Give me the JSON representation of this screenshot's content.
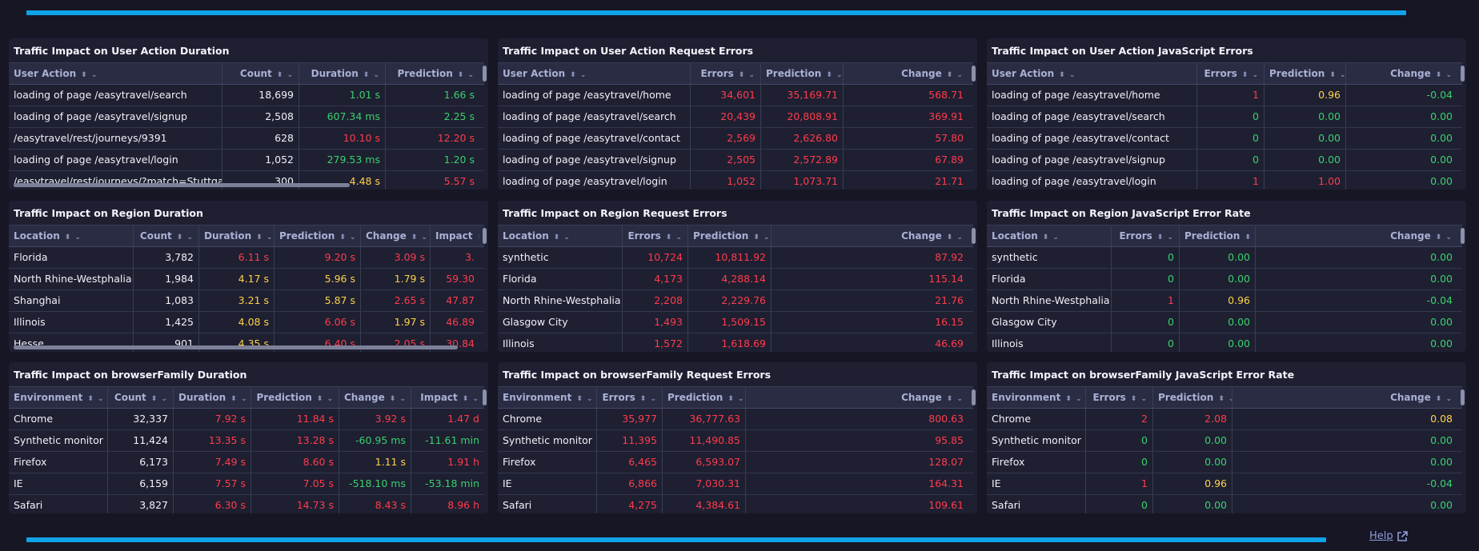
{
  "help_label": "Help",
  "colors": {
    "accent": "#0fa3e8",
    "red": "#ff3c4c",
    "green": "#39d16e",
    "yellow": "#ffd24a"
  },
  "panels": [
    {
      "title": "Traffic Impact on User Action Duration",
      "hscroll": true,
      "columns": [
        {
          "label": "User Action",
          "align": "left"
        },
        {
          "label": "Count",
          "align": "right"
        },
        {
          "label": "Duration",
          "align": "right"
        },
        {
          "label": "Prediction",
          "align": "right"
        }
      ],
      "rows": [
        {
          "cells": [
            "loading of page /easytravel/search",
            "18,699",
            "1.01 s",
            "1.66 s"
          ],
          "colors": [
            "white",
            "white",
            "green",
            "green"
          ]
        },
        {
          "cells": [
            "loading of page /easytravel/signup",
            "2,508",
            "607.34 ms",
            "2.25 s"
          ],
          "colors": [
            "white",
            "white",
            "green",
            "green"
          ]
        },
        {
          "cells": [
            "/easytravel/rest/journeys/9391",
            "628",
            "10.10 s",
            "12.20 s"
          ],
          "colors": [
            "white",
            "white",
            "red",
            "red"
          ]
        },
        {
          "cells": [
            "loading of page /easytravel/login",
            "1,052",
            "279.53 ms",
            "1.20 s"
          ],
          "colors": [
            "white",
            "white",
            "green",
            "green"
          ]
        },
        {
          "cells": [
            "/easytravel/rest/journeys/?match=Stuttgart",
            "300",
            "4.48 s",
            "5.57 s"
          ],
          "colors": [
            "white",
            "white",
            "yellow",
            "red"
          ]
        }
      ]
    },
    {
      "title": "Traffic Impact on User Action Request Errors",
      "hscroll": false,
      "columns": [
        {
          "label": "User Action",
          "align": "left"
        },
        {
          "label": "Errors",
          "align": "right"
        },
        {
          "label": "Prediction",
          "align": "right"
        },
        {
          "label": "Change",
          "align": "right"
        }
      ],
      "rows": [
        {
          "cells": [
            "loading of page /easytravel/home",
            "34,601",
            "35,169.71",
            "568.71"
          ],
          "colors": [
            "white",
            "red",
            "red",
            "red"
          ]
        },
        {
          "cells": [
            "loading of page /easytravel/search",
            "20,439",
            "20,808.91",
            "369.91"
          ],
          "colors": [
            "white",
            "red",
            "red",
            "red"
          ]
        },
        {
          "cells": [
            "loading of page /easytravel/contact",
            "2,569",
            "2,626.80",
            "57.80"
          ],
          "colors": [
            "white",
            "red",
            "red",
            "red"
          ]
        },
        {
          "cells": [
            "loading of page /easytravel/signup",
            "2,505",
            "2,572.89",
            "67.89"
          ],
          "colors": [
            "white",
            "red",
            "red",
            "red"
          ]
        },
        {
          "cells": [
            "loading of page /easytravel/login",
            "1,052",
            "1,073.71",
            "21.71"
          ],
          "colors": [
            "white",
            "red",
            "red",
            "red"
          ]
        }
      ]
    },
    {
      "title": "Traffic Impact on User Action JavaScript Errors",
      "hscroll": false,
      "columns": [
        {
          "label": "User Action",
          "align": "left"
        },
        {
          "label": "Errors",
          "align": "right"
        },
        {
          "label": "Prediction",
          "align": "right"
        },
        {
          "label": "Change",
          "align": "right"
        }
      ],
      "rows": [
        {
          "cells": [
            "loading of page /easytravel/home",
            "1",
            "0.96",
            "-0.04"
          ],
          "colors": [
            "white",
            "red",
            "yellow",
            "green"
          ]
        },
        {
          "cells": [
            "loading of page /easytravel/search",
            "0",
            "0.00",
            "0.00"
          ],
          "colors": [
            "white",
            "green",
            "green",
            "green"
          ]
        },
        {
          "cells": [
            "loading of page /easytravel/contact",
            "0",
            "0.00",
            "0.00"
          ],
          "colors": [
            "white",
            "green",
            "green",
            "green"
          ]
        },
        {
          "cells": [
            "loading of page /easytravel/signup",
            "0",
            "0.00",
            "0.00"
          ],
          "colors": [
            "white",
            "green",
            "green",
            "green"
          ]
        },
        {
          "cells": [
            "loading of page /easytravel/login",
            "1",
            "1.00",
            "0.00"
          ],
          "colors": [
            "white",
            "red",
            "red",
            "green"
          ]
        }
      ]
    },
    {
      "title": "Traffic Impact on Region Duration",
      "hscroll": true,
      "columns": [
        {
          "label": "Location",
          "align": "left"
        },
        {
          "label": "Count",
          "align": "right"
        },
        {
          "label": "Duration",
          "align": "right"
        },
        {
          "label": "Prediction",
          "align": "right"
        },
        {
          "label": "Change",
          "align": "right"
        },
        {
          "label": "Impact",
          "align": "right"
        }
      ],
      "rows": [
        {
          "cells": [
            "Florida",
            "3,782",
            "6.11 s",
            "9.20 s",
            "3.09 s",
            "3."
          ],
          "colors": [
            "white",
            "white",
            "red",
            "red",
            "red",
            "red"
          ]
        },
        {
          "cells": [
            "North Rhine-Westphalia",
            "1,984",
            "4.17 s",
            "5.96 s",
            "1.79 s",
            "59.30"
          ],
          "colors": [
            "white",
            "white",
            "yellow",
            "yellow",
            "yellow",
            "red"
          ]
        },
        {
          "cells": [
            "Shanghai",
            "1,083",
            "3.21 s",
            "5.87 s",
            "2.65 s",
            "47.87"
          ],
          "colors": [
            "white",
            "white",
            "yellow",
            "yellow",
            "red",
            "red"
          ]
        },
        {
          "cells": [
            "Illinois",
            "1,425",
            "4.08 s",
            "6.06 s",
            "1.97 s",
            "46.89"
          ],
          "colors": [
            "white",
            "white",
            "yellow",
            "red",
            "yellow",
            "red"
          ]
        },
        {
          "cells": [
            "Hesse",
            "901",
            "4.35 s",
            "6.40 s",
            "2.05 s",
            "30.84"
          ],
          "colors": [
            "white",
            "white",
            "yellow",
            "red",
            "red",
            "red"
          ]
        }
      ]
    },
    {
      "title": "Traffic Impact on Region Request Errors",
      "hscroll": false,
      "columns": [
        {
          "label": "Location",
          "align": "left"
        },
        {
          "label": "Errors",
          "align": "right"
        },
        {
          "label": "Prediction",
          "align": "right"
        },
        {
          "label": "Change",
          "align": "right"
        }
      ],
      "rows": [
        {
          "cells": [
            "synthetic",
            "10,724",
            "10,811.92",
            "87.92"
          ],
          "colors": [
            "white",
            "red",
            "red",
            "red"
          ]
        },
        {
          "cells": [
            "Florida",
            "4,173",
            "4,288.14",
            "115.14"
          ],
          "colors": [
            "white",
            "red",
            "red",
            "red"
          ]
        },
        {
          "cells": [
            "North Rhine-Westphalia",
            "2,208",
            "2,229.76",
            "21.76"
          ],
          "colors": [
            "white",
            "red",
            "red",
            "red"
          ]
        },
        {
          "cells": [
            "Glasgow City",
            "1,493",
            "1,509.15",
            "16.15"
          ],
          "colors": [
            "white",
            "red",
            "red",
            "red"
          ]
        },
        {
          "cells": [
            "Illinois",
            "1,572",
            "1,618.69",
            "46.69"
          ],
          "colors": [
            "white",
            "red",
            "red",
            "red"
          ]
        }
      ]
    },
    {
      "title": "Traffic Impact on Region JavaScript Error Rate",
      "hscroll": false,
      "columns": [
        {
          "label": "Location",
          "align": "left"
        },
        {
          "label": "Errors",
          "align": "right"
        },
        {
          "label": "Prediction",
          "align": "right"
        },
        {
          "label": "Change",
          "align": "right"
        }
      ],
      "rows": [
        {
          "cells": [
            "synthetic",
            "0",
            "0.00",
            "0.00"
          ],
          "colors": [
            "white",
            "green",
            "green",
            "green"
          ]
        },
        {
          "cells": [
            "Florida",
            "0",
            "0.00",
            "0.00"
          ],
          "colors": [
            "white",
            "green",
            "green",
            "green"
          ]
        },
        {
          "cells": [
            "North Rhine-Westphalia",
            "1",
            "0.96",
            "-0.04"
          ],
          "colors": [
            "white",
            "red",
            "yellow",
            "green"
          ]
        },
        {
          "cells": [
            "Glasgow City",
            "0",
            "0.00",
            "0.00"
          ],
          "colors": [
            "white",
            "green",
            "green",
            "green"
          ]
        },
        {
          "cells": [
            "Illinois",
            "0",
            "0.00",
            "0.00"
          ],
          "colors": [
            "white",
            "green",
            "green",
            "green"
          ]
        }
      ]
    },
    {
      "title": "Traffic Impact on browserFamily Duration",
      "hscroll": false,
      "columns": [
        {
          "label": "Environment",
          "align": "left"
        },
        {
          "label": "Count",
          "align": "right"
        },
        {
          "label": "Duration",
          "align": "right"
        },
        {
          "label": "Prediction",
          "align": "right"
        },
        {
          "label": "Change",
          "align": "right"
        },
        {
          "label": "Impact",
          "align": "right"
        }
      ],
      "rows": [
        {
          "cells": [
            "Chrome",
            "32,337",
            "7.92 s",
            "11.84 s",
            "3.92 s",
            "1.47 d"
          ],
          "colors": [
            "white",
            "white",
            "red",
            "red",
            "red",
            "red"
          ]
        },
        {
          "cells": [
            "Synthetic monitor",
            "11,424",
            "13.35 s",
            "13.28 s",
            "-60.95 ms",
            "-11.61 min"
          ],
          "colors": [
            "white",
            "white",
            "red",
            "red",
            "green",
            "green"
          ]
        },
        {
          "cells": [
            "Firefox",
            "6,173",
            "7.49 s",
            "8.60 s",
            "1.11 s",
            "1.91 h"
          ],
          "colors": [
            "white",
            "white",
            "red",
            "red",
            "yellow",
            "red"
          ]
        },
        {
          "cells": [
            "IE",
            "6,159",
            "7.57 s",
            "7.05 s",
            "-518.10 ms",
            "-53.18 min"
          ],
          "colors": [
            "white",
            "white",
            "red",
            "red",
            "green",
            "green"
          ]
        },
        {
          "cells": [
            "Safari",
            "3,827",
            "6.30 s",
            "14.73 s",
            "8.43 s",
            "8.96 h"
          ],
          "colors": [
            "white",
            "white",
            "red",
            "red",
            "red",
            "red"
          ]
        }
      ]
    },
    {
      "title": "Traffic Impact on browserFamily Request Errors",
      "hscroll": false,
      "columns": [
        {
          "label": "Environment",
          "align": "left"
        },
        {
          "label": "Errors",
          "align": "right"
        },
        {
          "label": "Prediction",
          "align": "right"
        },
        {
          "label": "Change",
          "align": "right"
        }
      ],
      "rows": [
        {
          "cells": [
            "Chrome",
            "35,977",
            "36,777.63",
            "800.63"
          ],
          "colors": [
            "white",
            "red",
            "red",
            "red"
          ]
        },
        {
          "cells": [
            "Synthetic monitor",
            "11,395",
            "11,490.85",
            "95.85"
          ],
          "colors": [
            "white",
            "red",
            "red",
            "red"
          ]
        },
        {
          "cells": [
            "Firefox",
            "6,465",
            "6,593.07",
            "128.07"
          ],
          "colors": [
            "white",
            "red",
            "red",
            "red"
          ]
        },
        {
          "cells": [
            "IE",
            "6,866",
            "7,030.31",
            "164.31"
          ],
          "colors": [
            "white",
            "red",
            "red",
            "red"
          ]
        },
        {
          "cells": [
            "Safari",
            "4,275",
            "4,384.61",
            "109.61"
          ],
          "colors": [
            "white",
            "red",
            "red",
            "red"
          ]
        }
      ]
    },
    {
      "title": "Traffic Impact on browserFamily JavaScript Error Rate",
      "hscroll": false,
      "columns": [
        {
          "label": "Environment",
          "align": "left"
        },
        {
          "label": "Errors",
          "align": "right"
        },
        {
          "label": "Prediction",
          "align": "right"
        },
        {
          "label": "Change",
          "align": "right"
        }
      ],
      "rows": [
        {
          "cells": [
            "Chrome",
            "2",
            "2.08",
            "0.08"
          ],
          "colors": [
            "white",
            "red",
            "red",
            "yellow"
          ]
        },
        {
          "cells": [
            "Synthetic monitor",
            "0",
            "0.00",
            "0.00"
          ],
          "colors": [
            "white",
            "green",
            "green",
            "green"
          ]
        },
        {
          "cells": [
            "Firefox",
            "0",
            "0.00",
            "0.00"
          ],
          "colors": [
            "white",
            "green",
            "green",
            "green"
          ]
        },
        {
          "cells": [
            "IE",
            "1",
            "0.96",
            "-0.04"
          ],
          "colors": [
            "white",
            "red",
            "yellow",
            "green"
          ]
        },
        {
          "cells": [
            "Safari",
            "0",
            "0.00",
            "0.00"
          ],
          "colors": [
            "white",
            "green",
            "green",
            "green"
          ]
        }
      ]
    }
  ]
}
